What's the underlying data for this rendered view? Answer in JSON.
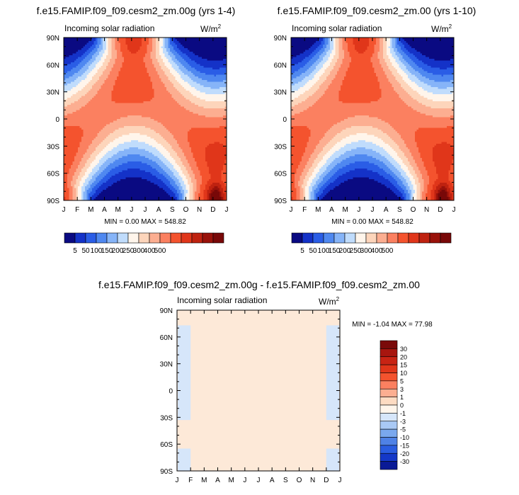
{
  "page": {
    "background": "#ffffff"
  },
  "chart_data": [
    {
      "type": "heatmap",
      "title": "f.e15.FAMIP.f09_f09.cesm2_zm.00g (yrs 1-4)",
      "left_label": "Incoming solar radiation",
      "units_base": "W/m",
      "units_exp": "2",
      "x_ticks": [
        "J",
        "F",
        "M",
        "A",
        "M",
        "J",
        "J",
        "A",
        "S",
        "O",
        "N",
        "D",
        "J"
      ],
      "y_ticks": [
        "90N",
        "60N",
        "30N",
        "0",
        "30S",
        "60S",
        "90S"
      ],
      "y_range": [
        -90,
        90
      ],
      "stats_text": "MIN =   0.00 MAX = 548.82",
      "min": 0.0,
      "max": 548.82,
      "field": "seasonal insolation by month and latitude"
    },
    {
      "type": "heatmap",
      "title": "f.e15.FAMIP.f09_f09.cesm2_zm.00 (yrs 1-10)",
      "left_label": "Incoming solar radiation",
      "units_base": "W/m",
      "units_exp": "2",
      "x_ticks": [
        "J",
        "F",
        "M",
        "A",
        "M",
        "J",
        "J",
        "A",
        "S",
        "O",
        "N",
        "D",
        "J"
      ],
      "y_ticks": [
        "90N",
        "60N",
        "30N",
        "0",
        "30S",
        "60S",
        "90S"
      ],
      "y_range": [
        -90,
        90
      ],
      "stats_text": "MIN =   0.00 MAX = 548.82",
      "min": 0.0,
      "max": 548.82,
      "field": "seasonal insolation by month and latitude"
    },
    {
      "type": "heatmap",
      "title": "f.e15.FAMIP.f09_f09.cesm2_zm.00g - f.e15.FAMIP.f09_f09.cesm2_zm.00",
      "left_label": "Incoming solar radiation",
      "units_base": "W/m",
      "units_exp": "2",
      "x_ticks": [
        "J",
        "F",
        "M",
        "A",
        "M",
        "J",
        "J",
        "A",
        "S",
        "O",
        "N",
        "D",
        "J"
      ],
      "y_ticks": [
        "90N",
        "60N",
        "30N",
        "0",
        "30S",
        "60S",
        "90S"
      ],
      "y_range": [
        -90,
        90
      ],
      "stats_text": "MIN =  -1.04 MAX =  77.98",
      "min": -1.04,
      "max": 77.98,
      "field": "difference: near zero everywhere, slight negative (-1 to 0) in January and December from 30S to 70N and at high southern latitudes"
    }
  ],
  "colorbar_top": {
    "labels": [
      "5",
      "50",
      "100",
      "150",
      "200",
      "250",
      "300",
      "400",
      "500"
    ],
    "colors": [
      "#0a0a82",
      "#1432c8",
      "#2a5de6",
      "#4f88f0",
      "#86b4f8",
      "#c0dcfc",
      "#fff5eb",
      "#fdd5bb",
      "#fcae91",
      "#fb8060",
      "#f4532e",
      "#e0361a",
      "#bf2210",
      "#99120a",
      "#780808"
    ]
  },
  "colorbar_diff": {
    "labels": [
      "30",
      "20",
      "15",
      "10",
      "5",
      "3",
      "1",
      "0",
      "-1",
      "-3",
      "-5",
      "-10",
      "-15",
      "-20",
      "-30"
    ],
    "colors": [
      "#7a0a0a",
      "#a8160f",
      "#c82414",
      "#e0361a",
      "#f4532e",
      "#fb8060",
      "#fcae91",
      "#fddbc2",
      "#fff5eb",
      "#d6e6fa",
      "#a9c9f5",
      "#7aa8ee",
      "#4f82e6",
      "#2a5de0",
      "#1438c8",
      "#0a1a96"
    ]
  },
  "diff_colors": {
    "zero": "#fde9d8",
    "neg": "#d6e6fa"
  }
}
